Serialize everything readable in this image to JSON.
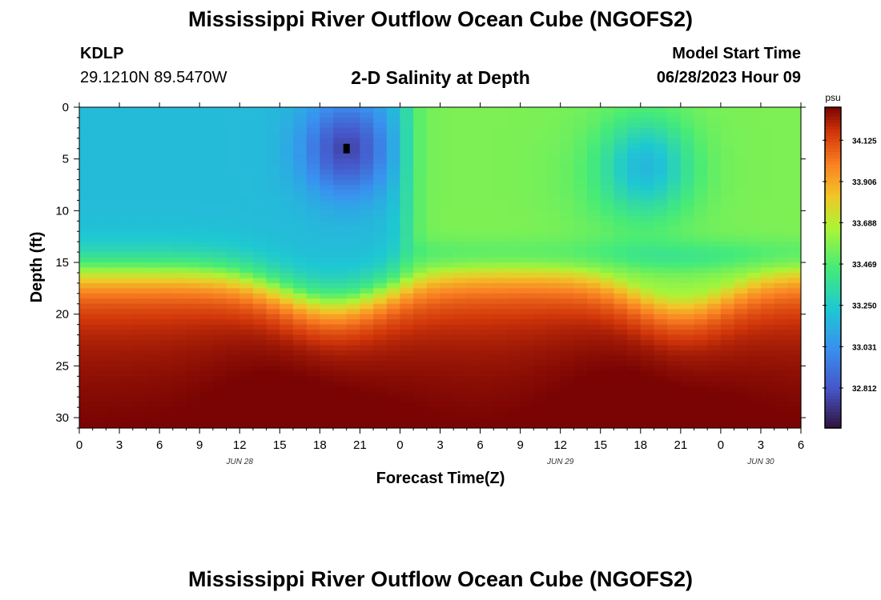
{
  "header": {
    "title": "Mississippi River Outflow Ocean Cube (NGOFS2)",
    "station_id": "KDLP",
    "station_coords": "29.1210N  89.5470W",
    "subtitle": "2-D Salinity at Depth",
    "model_start_label": "Model Start Time",
    "model_start_value": "06/28/2023 Hour 09"
  },
  "footer": {
    "title": "Mississippi River Outflow Ocean Cube (NGOFS2)"
  },
  "chart_data": {
    "type": "heatmap",
    "title": "2-D Salinity at Depth",
    "xlabel": "Forecast Time(Z)",
    "ylabel": "Depth (ft)",
    "x_ticks": [
      "0",
      "3",
      "6",
      "9",
      "12",
      "15",
      "18",
      "21",
      "0",
      "3",
      "6",
      "9",
      "12",
      "15",
      "18",
      "21",
      "0",
      "3",
      "6"
    ],
    "x_range_hours": [
      0,
      54
    ],
    "date_labels": [
      {
        "label": "JUN 28",
        "hour": 12
      },
      {
        "label": "JUN 29",
        "hour": 36
      },
      {
        "label": "JUN 30",
        "hour": 51
      }
    ],
    "y_ticks": [
      0,
      5,
      10,
      15,
      20,
      25,
      30
    ],
    "ylim": [
      0,
      31
    ],
    "y_reversed": true,
    "colorbar": {
      "unit": "psu",
      "range": [
        32.6,
        34.3
      ],
      "tick_values": [
        34.125,
        33.906,
        33.688,
        33.469,
        33.25,
        33.031,
        32.812
      ],
      "tick_labels": [
        "34.125",
        "33.906",
        "33.688",
        "33.469",
        "33.250",
        "33.031",
        "32.812"
      ]
    },
    "marker": {
      "hour": 20,
      "depth": 4
    }
  }
}
